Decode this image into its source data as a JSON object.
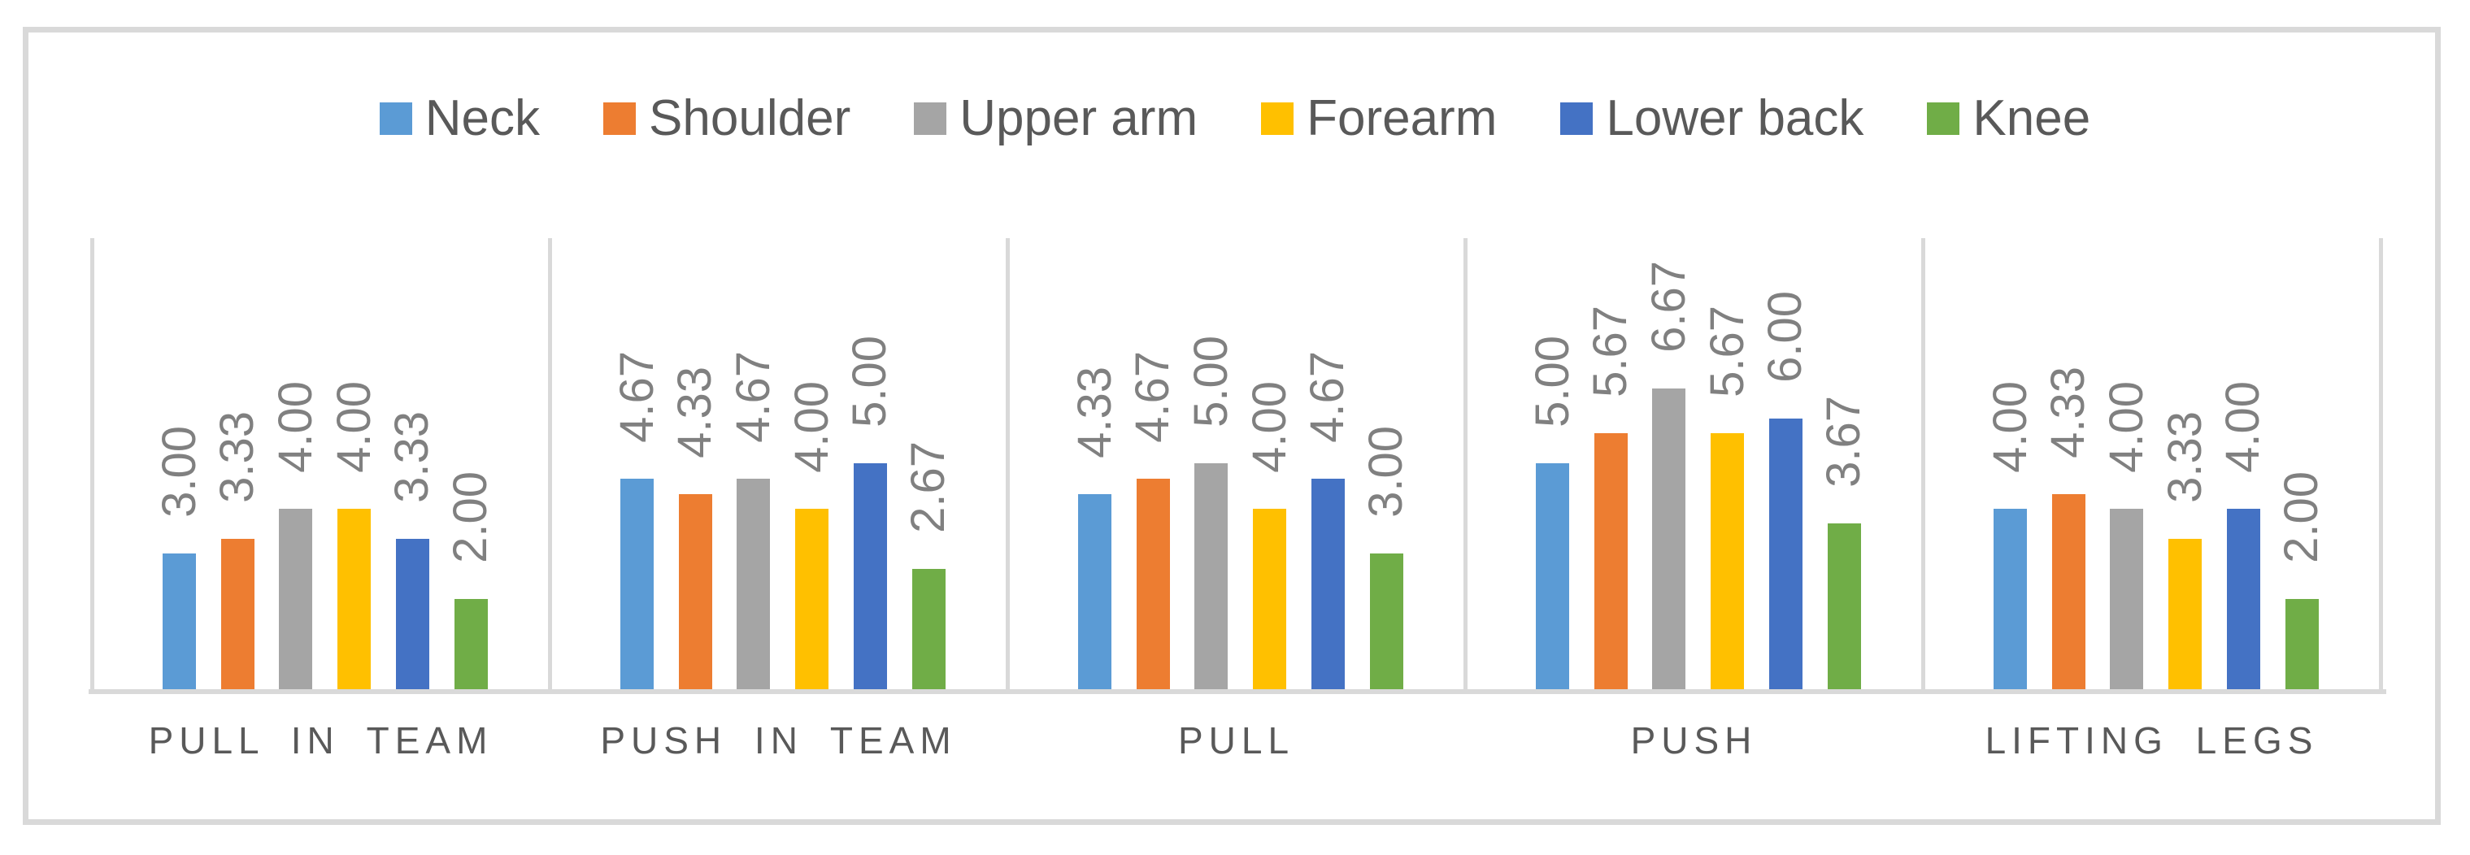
{
  "figure": {
    "background": "#ffffff",
    "border_color": "#d9d9d9"
  },
  "legend": {
    "position": "top-center",
    "items": [
      {
        "label": "Neck",
        "color": "#5B9BD5"
      },
      {
        "label": "Shoulder",
        "color": "#ED7D31"
      },
      {
        "label": "Upper arm",
        "color": "#A5A5A5"
      },
      {
        "label": "Forearm",
        "color": "#FFC000"
      },
      {
        "label": "Lower back",
        "color": "#4472C4"
      },
      {
        "label": "Knee",
        "color": "#70AD47"
      }
    ]
  },
  "chart_data": {
    "type": "bar",
    "title": "",
    "xlabel": "",
    "ylabel": "",
    "categories": [
      "PULL IN TEAM",
      "PUSH IN TEAM",
      "PULL",
      "PUSH",
      "LIFTING LEGS"
    ],
    "series": [
      {
        "name": "Neck",
        "color": "#5B9BD5",
        "values": [
          3.0,
          4.67,
          4.33,
          5.0,
          4.0
        ]
      },
      {
        "name": "Shoulder",
        "color": "#ED7D31",
        "values": [
          3.33,
          4.33,
          4.67,
          5.67,
          4.33
        ]
      },
      {
        "name": "Upper arm",
        "color": "#A5A5A5",
        "values": [
          4.0,
          4.67,
          5.0,
          6.67,
          4.0
        ]
      },
      {
        "name": "Forearm",
        "color": "#FFC000",
        "values": [
          4.0,
          4.0,
          4.0,
          5.67,
          3.33
        ]
      },
      {
        "name": "Lower back",
        "color": "#4472C4",
        "values": [
          3.33,
          5.0,
          4.67,
          6.0,
          4.0
        ]
      },
      {
        "name": "Knee",
        "color": "#70AD47",
        "values": [
          2.0,
          2.67,
          3.0,
          3.67,
          2.0
        ]
      }
    ],
    "ylim": [
      0,
      10
    ],
    "value_axis_visible": false,
    "gridlines": "vertical category separators only",
    "data_labels": {
      "format": "0.00",
      "rotation": -90,
      "color": "#808080",
      "position": "above bar"
    },
    "legend_position": "top",
    "axis_line_color": "#d9d9d9",
    "category_label_color": "#595959"
  }
}
